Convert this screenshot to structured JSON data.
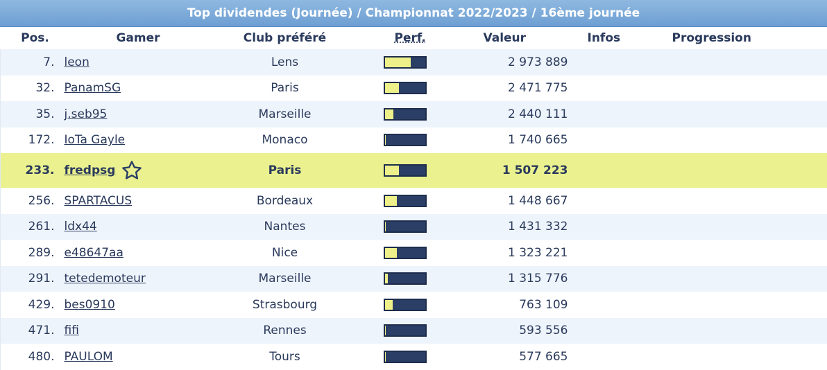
{
  "title": "Top dividendes (Journée) / Championnat 2022/2023 / 16ème journée",
  "headers": {
    "pos": "Pos.",
    "gamer": "Gamer",
    "club": "Club préféré",
    "perf": "Perf.",
    "value": "Valeur",
    "infos": "Infos",
    "progression": "Progression"
  },
  "colors": {
    "accent_bar": "#6d9fd3",
    "highlight": "#eaf18e",
    "perf_fill": "#eef08a",
    "perf_empty": "#2b3e66"
  },
  "rows": [
    {
      "pos": "7.",
      "gamer": "leon",
      "club": "Lens",
      "perf": 0.65,
      "value": "2 973 889"
    },
    {
      "pos": "32.",
      "gamer": "PanamSG",
      "club": "Paris",
      "perf": 0.35,
      "value": "2 471 775"
    },
    {
      "pos": "35.",
      "gamer": "j.seb95",
      "club": "Marseille",
      "perf": 0.22,
      "value": "2 440 111"
    },
    {
      "pos": "172.",
      "gamer": "IoTa Gayle",
      "club": "Monaco",
      "perf": 0.03,
      "value": "1 740 665"
    },
    {
      "pos": "233.",
      "gamer": "fredpsg",
      "club": "Paris",
      "perf": 0.35,
      "value": "1 507 223",
      "is_me": true
    },
    {
      "pos": "256.",
      "gamer": "SPARTACUS",
      "club": "Bordeaux",
      "perf": 0.3,
      "value": "1 448 667"
    },
    {
      "pos": "261.",
      "gamer": "ldx44",
      "club": "Nantes",
      "perf": 0.03,
      "value": "1 431 332"
    },
    {
      "pos": "289.",
      "gamer": "e48647aa",
      "club": "Nice",
      "perf": 0.3,
      "value": "1 323 221"
    },
    {
      "pos": "291.",
      "gamer": "tetedemoteur",
      "club": "Marseille",
      "perf": 0.08,
      "value": "1 315 776"
    },
    {
      "pos": "429.",
      "gamer": "bes0910",
      "club": "Strasbourg",
      "perf": 0.2,
      "value": "763 109"
    },
    {
      "pos": "471.",
      "gamer": "fifi",
      "club": "Rennes",
      "perf": 0.03,
      "value": "593 556"
    },
    {
      "pos": "480.",
      "gamer": "PAULOM",
      "club": "Tours",
      "perf": 0.03,
      "value": "577 665"
    }
  ]
}
